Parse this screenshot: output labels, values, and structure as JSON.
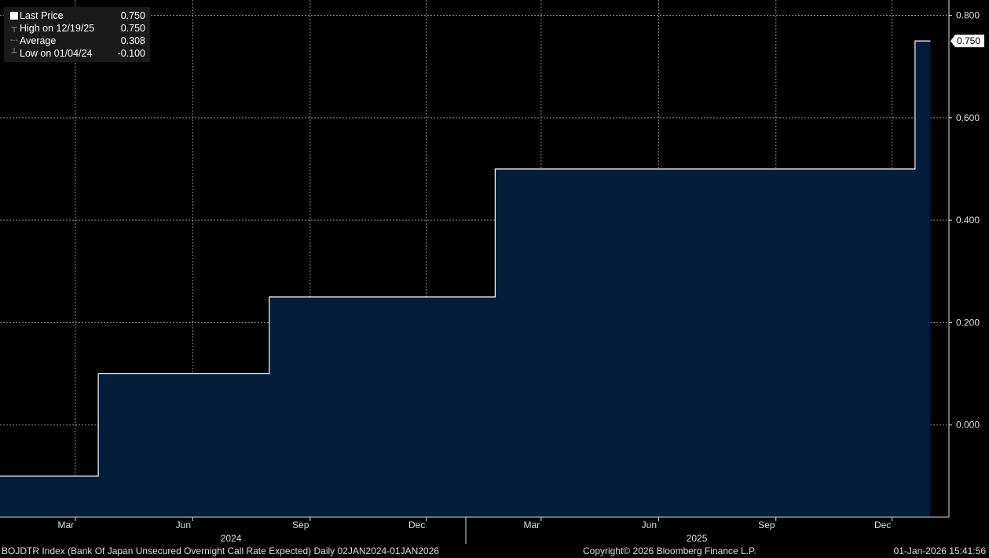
{
  "legend": {
    "items": [
      {
        "label": "Last Price",
        "value": "0.750",
        "icon": "square-swatch-icon"
      },
      {
        "label": "High on 12/19/25",
        "value": "0.750",
        "icon": "high-marker-icon"
      },
      {
        "label": "Average",
        "value": "0.308",
        "icon": "average-marker-icon"
      },
      {
        "label": "Low on 01/04/24",
        "value": "-0.100",
        "icon": "low-marker-icon"
      }
    ]
  },
  "last_price_tag": "0.750",
  "footer": {
    "left": "BOJDTR Index (Bank Of Japan Unsecured Overnight Call Rate Expected) Daily 02JAN2024-01JAN2026",
    "center": "Copyright© 2026 Bloomberg Finance L.P.",
    "right": "01-Jan-2026 15:41:56"
  },
  "chart_data": {
    "type": "area",
    "x_start": "2024-01-02",
    "x_end": "2026-01-01",
    "ylim": [
      -0.18,
      0.83
    ],
    "yticks": [
      0.0,
      0.2,
      0.4,
      0.6,
      0.8
    ],
    "ytick_labels": [
      "0.000",
      "0.200",
      "0.400",
      "0.600",
      "0.800"
    ],
    "month_ticks": [
      {
        "date": "2024-03-01",
        "label": "Mar"
      },
      {
        "date": "2024-06-01",
        "label": "Jun"
      },
      {
        "date": "2024-09-01",
        "label": "Sep"
      },
      {
        "date": "2024-12-01",
        "label": "Dec"
      },
      {
        "date": "2025-03-01",
        "label": "Mar"
      },
      {
        "date": "2025-06-01",
        "label": "Jun"
      },
      {
        "date": "2025-09-01",
        "label": "Sep"
      },
      {
        "date": "2025-12-01",
        "label": "Dec"
      }
    ],
    "year_labels": [
      {
        "date": "2024-07-01",
        "label": "2024"
      },
      {
        "date": "2025-07-01",
        "label": "2025"
      }
    ],
    "year_boundaries": [
      "2025-01-01"
    ],
    "grid": true,
    "series": [
      {
        "name": "Last Price",
        "step": true,
        "points": [
          {
            "x": "2024-01-02",
            "y": -0.1
          },
          {
            "x": "2024-03-19",
            "y": 0.1
          },
          {
            "x": "2024-07-31",
            "y": 0.25
          },
          {
            "x": "2025-01-24",
            "y": 0.5
          },
          {
            "x": "2025-12-19",
            "y": 0.75
          },
          {
            "x": "2025-12-31",
            "y": 0.75
          }
        ]
      }
    ],
    "colors": {
      "line": "#ffffff",
      "fill": "#031d3a",
      "grid": "#8a8a8a",
      "background": "#000000"
    }
  }
}
